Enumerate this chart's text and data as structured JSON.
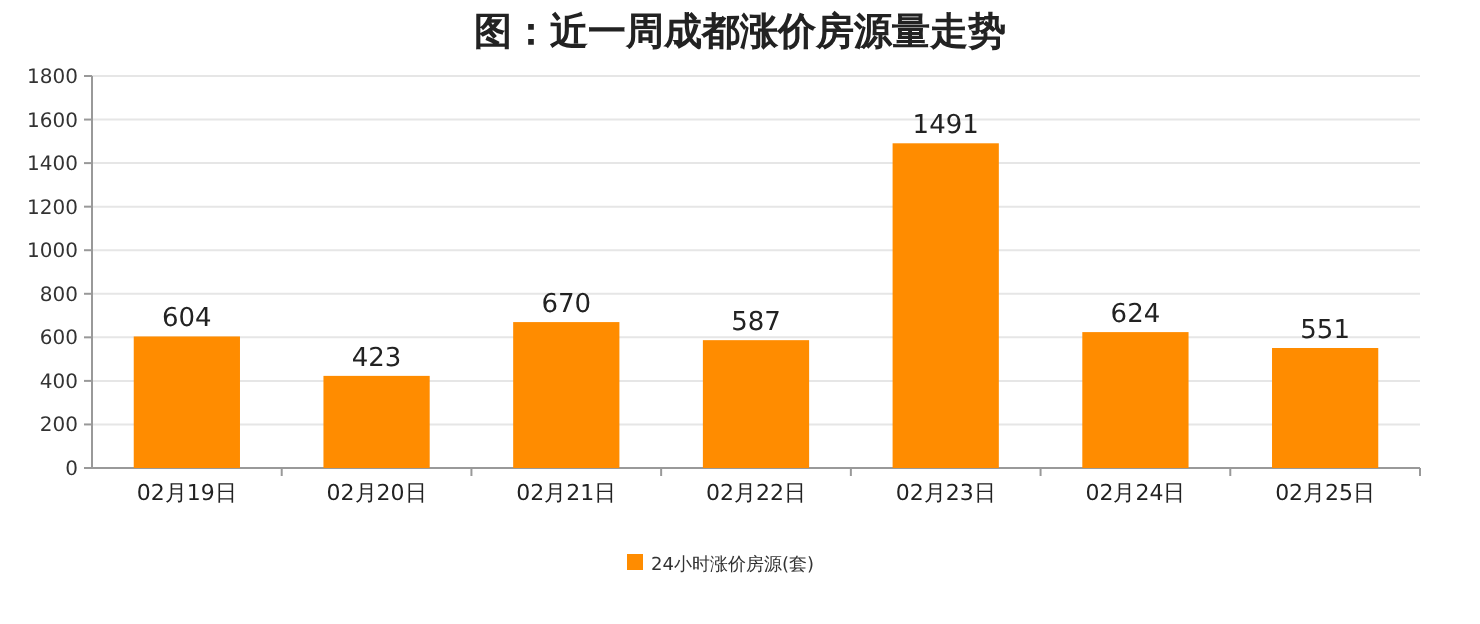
{
  "chart_data": {
    "type": "bar",
    "title": "图：近一周成都涨价房源量走势",
    "categories": [
      "02月19日",
      "02月20日",
      "02月21日",
      "02月22日",
      "02月23日",
      "02月24日",
      "02月25日"
    ],
    "series": [
      {
        "name": "24小时涨价房源(套)",
        "color": "#ff8c00",
        "values": [
          604,
          423,
          670,
          587,
          1491,
          624,
          551
        ]
      }
    ],
    "ylim": [
      0,
      1800
    ],
    "yticks": [
      0,
      200,
      400,
      600,
      800,
      1000,
      1200,
      1400,
      1600,
      1800
    ],
    "grid": "y",
    "data_labels": true,
    "legend": "bottom"
  }
}
